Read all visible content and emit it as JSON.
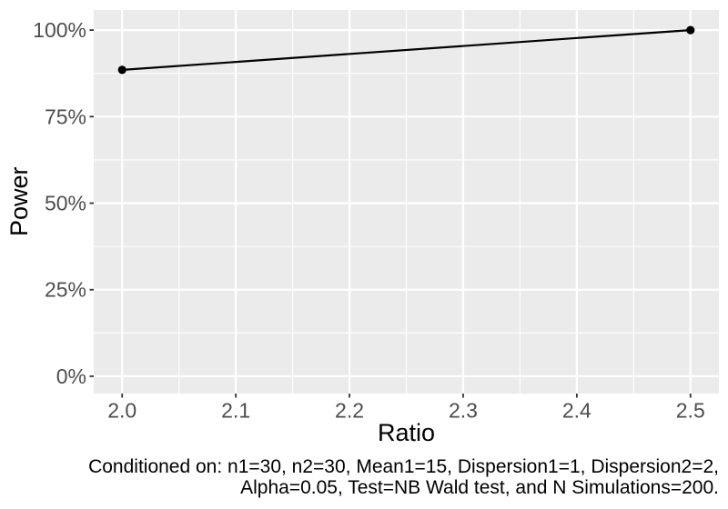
{
  "chart_data": {
    "type": "line",
    "title": "",
    "xlabel": "Ratio",
    "ylabel": "Power",
    "series": [
      {
        "name": "Power",
        "x": [
          2.0,
          2.5
        ],
        "y_percent": [
          88.5,
          100
        ],
        "color": "#000000",
        "marker": "filled-circle"
      }
    ],
    "x_ticks": {
      "values": [
        2.0,
        2.1,
        2.2,
        2.3,
        2.4,
        2.5
      ],
      "labels": [
        "2.0",
        "2.1",
        "2.2",
        "2.3",
        "2.4",
        "2.5"
      ]
    },
    "y_ticks": {
      "values": [
        0,
        25,
        50,
        75,
        100
      ],
      "labels": [
        "0%",
        "25%",
        "50%",
        "75%",
        "100%"
      ]
    },
    "x_minor_ticks": [
      2.05,
      2.15,
      2.25,
      2.35,
      2.45
    ],
    "y_minor_ticks": [
      12.5,
      37.5,
      62.5,
      87.5
    ],
    "xlim": [
      1.975,
      2.525
    ],
    "ylim_percent": [
      -5,
      105.8
    ],
    "grid": "major+minor",
    "legend": "none",
    "caption_lines": [
      "Conditioned on: n1=30, n2=30, Mean1=15, Dispersion1=1, Dispersion2=2,",
      "Alpha=0.05, Test=NB Wald test, and N Simulations=200."
    ],
    "style": {
      "panel_bg": "#EBEBEB",
      "plot_bg": "#FFFFFF",
      "grid_color": "#FFFFFF",
      "tick_label_color": "#4D4D4D",
      "tick_mark_color": "#333333",
      "axis_title_color": "#000000",
      "caption_color": "#000000",
      "line_color": "#000000",
      "point_color": "#000000"
    }
  }
}
